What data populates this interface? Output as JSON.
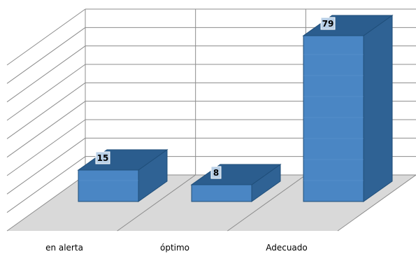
{
  "chart_data": {
    "type": "bar",
    "style": "3d-column",
    "categories": [
      "en alerta",
      "óptimo",
      "Adecuado"
    ],
    "values": [
      15,
      8,
      79
    ],
    "title": "",
    "xlabel": "",
    "ylabel": "",
    "ylim": [
      0,
      90
    ],
    "grid": true,
    "legend": "none",
    "data_labels": true
  },
  "colors": {
    "bar_front": "#4a86c4",
    "bar_side": "#2f6294",
    "bar_top": "#2b5d8e",
    "bar_edge": "#1f4e79",
    "floor": "#d9d9d9",
    "grid": "#8c8c8c",
    "label_box": "#b8cfe6"
  }
}
